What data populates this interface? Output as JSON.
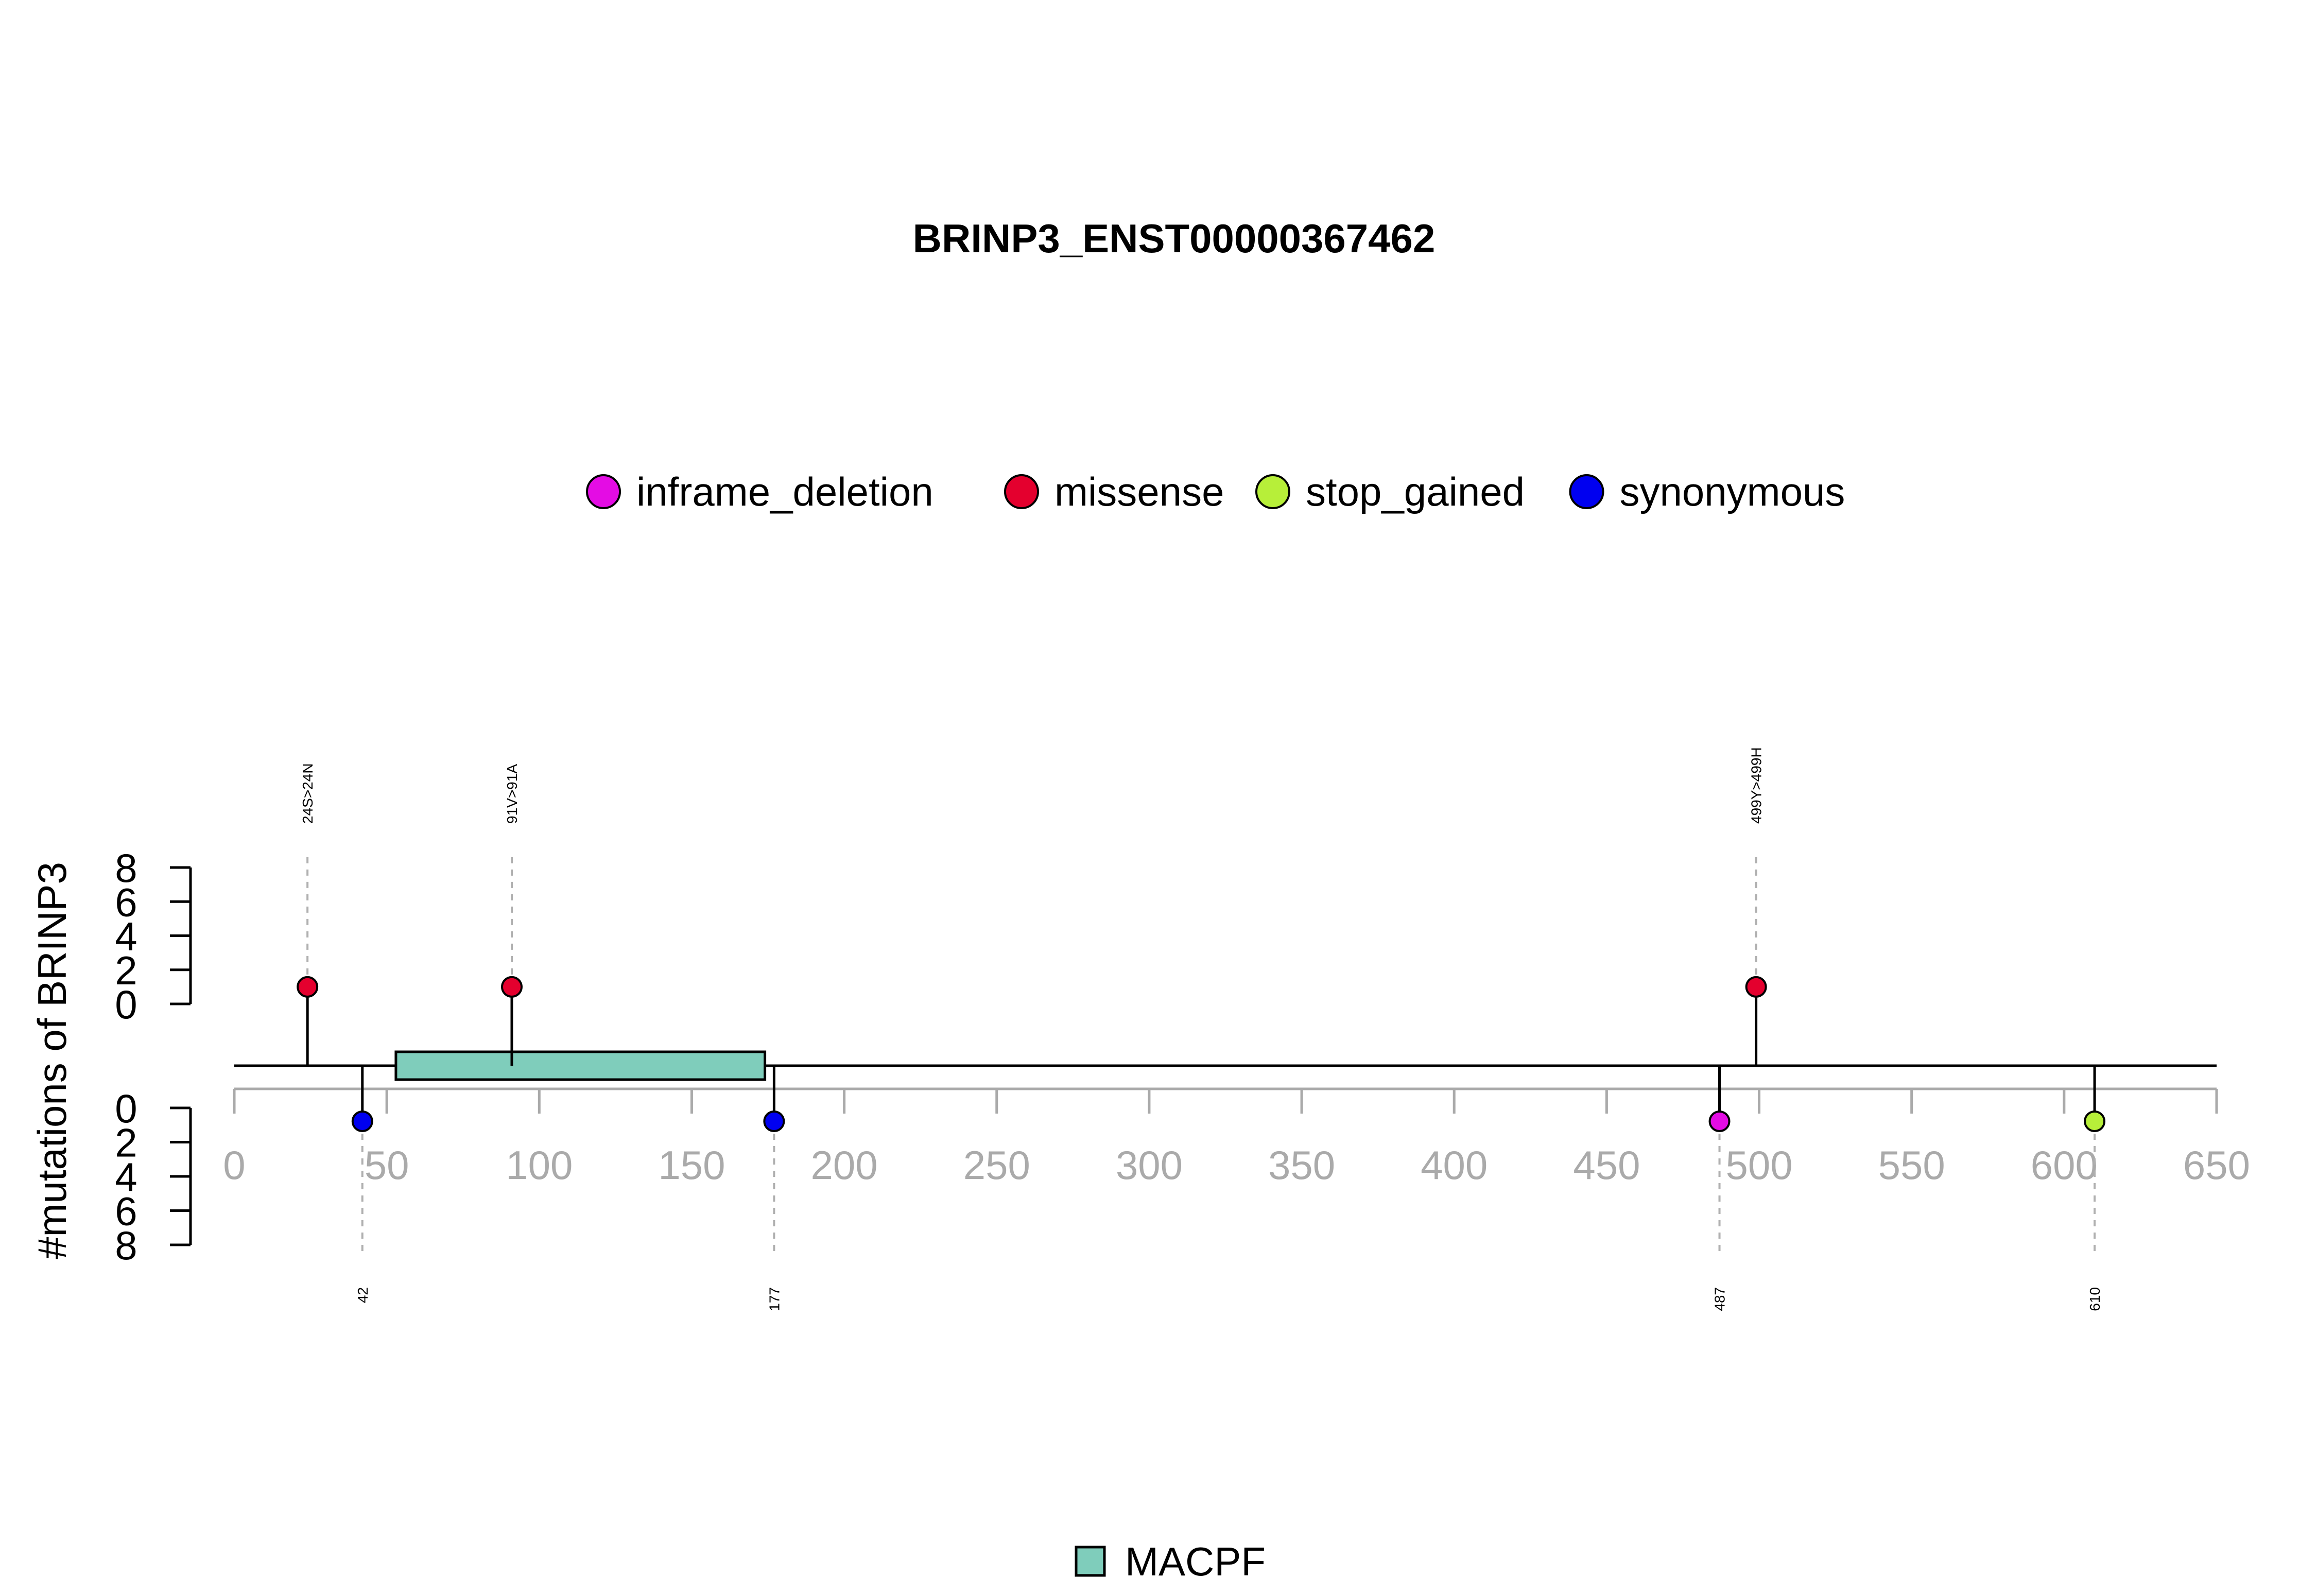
{
  "chart_data": {
    "type": "lollipop",
    "title": "BRINP3_ENST00000367462",
    "ylabel": "#mutations of BRINP3",
    "xlim": [
      0,
      650
    ],
    "x_ticks": [
      "0",
      "50",
      "100",
      "150",
      "200",
      "250",
      "300",
      "350",
      "400",
      "450",
      "500",
      "550",
      "600",
      "650"
    ],
    "y_ticks_top": [
      "0",
      "2",
      "4",
      "6",
      "8"
    ],
    "y_ticks_bottom": [
      "0",
      "2",
      "4",
      "6",
      "8"
    ],
    "ylim": [
      0,
      8
    ],
    "legend": [
      {
        "label": "inframe_deletion",
        "color": "#e40ce4"
      },
      {
        "label": "missense",
        "color": "#e4002e"
      },
      {
        "label": "stop_gained",
        "color": "#b7ef39"
      },
      {
        "label": "synonymous",
        "color": "#0000f0"
      }
    ],
    "mutations_top": [
      {
        "position": 24,
        "label": "24S>24N",
        "type": "missense",
        "count": 1
      },
      {
        "position": 91,
        "label": "91V>91A",
        "type": "missense",
        "count": 1
      },
      {
        "position": 499,
        "label": "499Y>499H",
        "type": "missense",
        "count": 1
      }
    ],
    "mutations_bottom": [
      {
        "position": 42,
        "label": "42",
        "type": "synonymous",
        "count": 1
      },
      {
        "position": 177,
        "label": "177",
        "type": "synonymous",
        "count": 1
      },
      {
        "position": 487,
        "label": "487",
        "type": "inframe_deletion",
        "count": 1
      },
      {
        "position": 610,
        "label": "610",
        "type": "stop_gained",
        "count": 1
      }
    ],
    "domains": [
      {
        "name": "MACPF",
        "start": 53,
        "end": 174,
        "color": "#7fcdbb"
      }
    ]
  }
}
